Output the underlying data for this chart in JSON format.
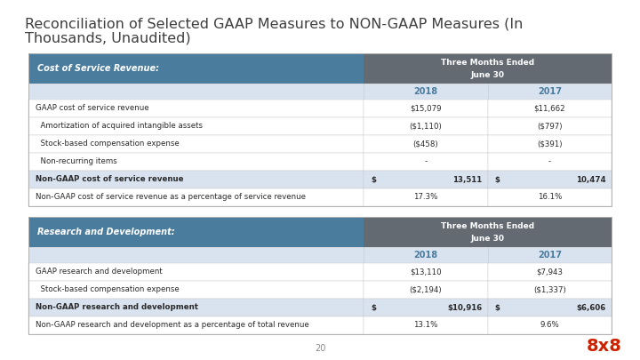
{
  "title_line1": "Reconciliation of Selected GAAP Measures to NON-GAAP Measures (In",
  "title_line2": "Thousands, Unaudited)",
  "title_fontsize": 11.5,
  "title_color": "#3f3f3f",
  "bg_color": "#ffffff",
  "outer_border_color": "#b0b0b0",
  "tbl_header_bg": "#4a7c9e",
  "col_hdr_bg": "#636a72",
  "year_row_bg": "#d9e2ef",
  "year_text_color": "#4a7c9e",
  "white": "#ffffff",
  "row_border": "#c8c8c8",
  "text_color": "#2a2a2a",
  "non_gaap_total_bg": "#d9e2ef",
  "footer_text": "20",
  "logo_text": "8x8",
  "logo_color": "#cc2200",
  "table1_header_label": "Cost of Service Revenue:",
  "table2_header_label": "Research and Development:",
  "table1_rows": [
    [
      "GAAP cost of service revenue",
      "$15,079",
      "$11,662",
      false,
      false
    ],
    [
      "  Amortization of acquired intangible assets",
      "($1,110)",
      "($797)",
      false,
      false
    ],
    [
      "  Stock-based compensation expense",
      "($458)",
      "($391)",
      false,
      false
    ],
    [
      "  Non-recurring items",
      "-",
      "-",
      false,
      false
    ],
    [
      "Non-GAAP cost of service revenue",
      "13,511",
      "10,474",
      true,
      true
    ],
    [
      "Non-GAAP cost of service revenue as a percentage of service revenue",
      "17.3%",
      "16.1%",
      false,
      false
    ]
  ],
  "table2_rows": [
    [
      "GAAP research and development",
      "$13,110",
      "$7,943",
      false,
      false
    ],
    [
      "  Stock-based compensation expense",
      "($2,194)",
      "($1,337)",
      false,
      false
    ],
    [
      "Non-GAAP research and development",
      "$10,916",
      "$6,606",
      true,
      true
    ],
    [
      "Non-GAAP research and development as a percentage of total revenue",
      "13.1%",
      "9.6%",
      false,
      false
    ]
  ]
}
